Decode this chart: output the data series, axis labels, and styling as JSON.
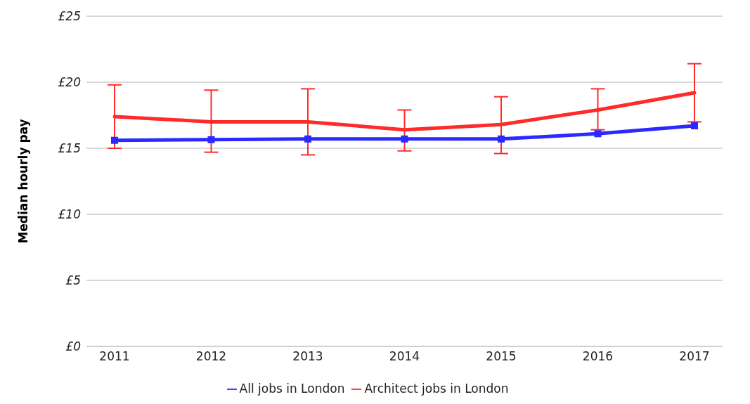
{
  "chart_data": {
    "type": "line",
    "ylabel": "Median hourly pay",
    "categories": [
      "2011",
      "2012",
      "2013",
      "2014",
      "2015",
      "2016",
      "2017"
    ],
    "series": [
      {
        "name": "Architect jobs in London",
        "color": "#ff2a2a",
        "marker": "none",
        "values": [
          17.4,
          17.0,
          17.0,
          16.4,
          16.8,
          17.9,
          19.2
        ],
        "errors": [
          [
            15.0,
            19.8
          ],
          [
            14.7,
            19.4
          ],
          [
            14.5,
            19.5
          ],
          [
            14.8,
            17.9
          ],
          [
            14.6,
            18.9
          ],
          [
            16.4,
            19.5
          ],
          [
            17.0,
            21.4
          ]
        ]
      },
      {
        "name": "All jobs in London",
        "color": "#2a2aff",
        "marker": "square",
        "values": [
          15.6,
          15.65,
          15.7,
          15.7,
          15.7,
          16.1,
          16.7
        ]
      }
    ],
    "ylim": [
      0,
      25
    ],
    "yticks": [
      {
        "value": 0,
        "label": "£0"
      },
      {
        "value": 5,
        "label": "£5"
      },
      {
        "value": 10,
        "label": "£10"
      },
      {
        "value": 15,
        "label": "£15"
      },
      {
        "value": 20,
        "label": "£20"
      },
      {
        "value": 25,
        "label": "£25"
      }
    ],
    "grid": "y",
    "legend": "bottom",
    "line_style": "solid"
  }
}
